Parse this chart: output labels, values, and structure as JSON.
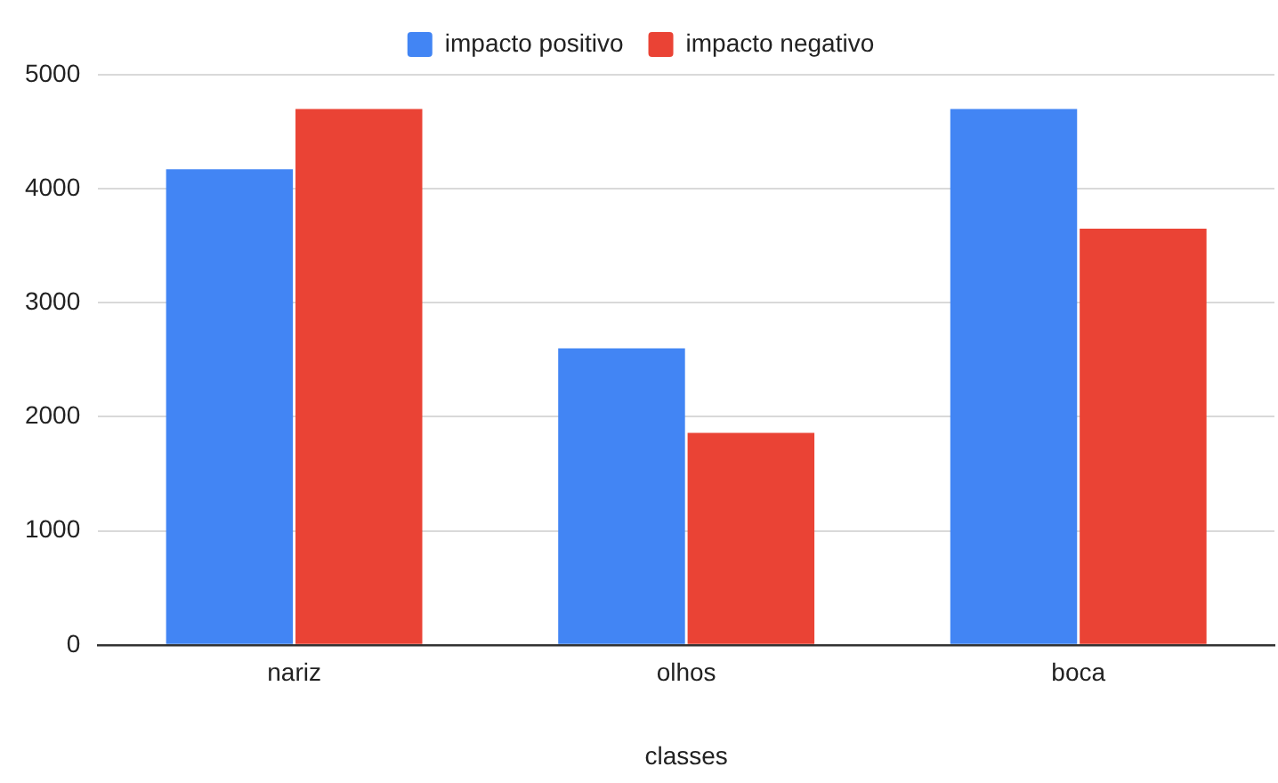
{
  "chart_data": {
    "type": "bar",
    "xlabel": "classes",
    "categories": [
      "nariz",
      "olhos",
      "boca"
    ],
    "series": [
      {
        "name": "impacto positivo",
        "color": "#4285f4",
        "values": [
          4170,
          2600,
          4700
        ]
      },
      {
        "name": "impacto negativo",
        "color": "#ea4335",
        "values": [
          4700,
          1860,
          3650
        ]
      }
    ],
    "ylim": [
      0,
      5000
    ],
    "yticks": [
      0,
      1000,
      2000,
      3000,
      4000,
      5000
    ],
    "grid": "y",
    "legend": "top"
  }
}
